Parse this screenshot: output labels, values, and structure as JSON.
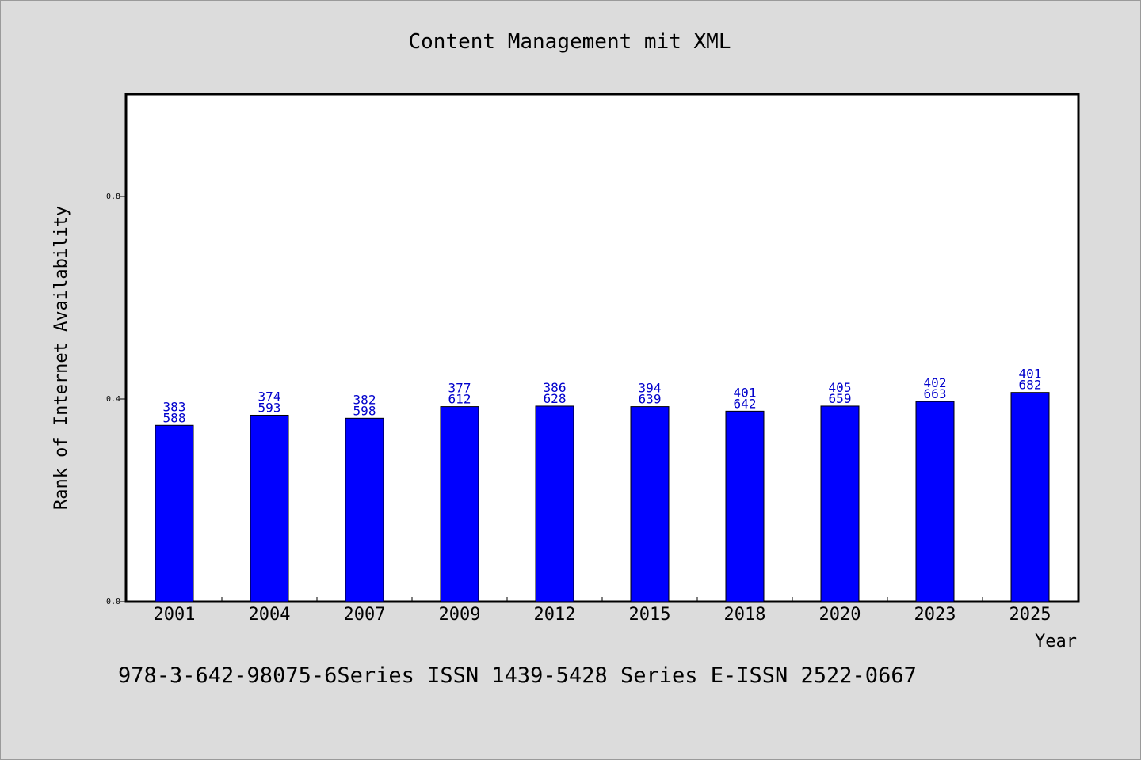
{
  "chart_data": {
    "type": "bar",
    "title": "Content Management mit XML",
    "xlabel": "Year",
    "ylabel": "Rank of Internet Availability",
    "categories": [
      "2001",
      "2004",
      "2007",
      "2009",
      "2012",
      "2015",
      "2018",
      "2020",
      "2023",
      "2025"
    ],
    "values": [
      0.348,
      0.368,
      0.362,
      0.385,
      0.386,
      0.385,
      0.376,
      0.386,
      0.395,
      0.413
    ],
    "label_top": [
      "383",
      "374",
      "382",
      "377",
      "386",
      "394",
      "401",
      "405",
      "402",
      "401"
    ],
    "label_bottom": [
      "588",
      "593",
      "598",
      "612",
      "628",
      "639",
      "642",
      "659",
      "663",
      "682"
    ],
    "yticks": [
      "0.0",
      "0.4",
      "0.8"
    ],
    "ytick_values": [
      0.0,
      0.4,
      0.8
    ],
    "ylim": [
      0,
      1.0
    ],
    "grid": false,
    "bar_color": "#0000ff",
    "label_color": "#0000cc"
  },
  "footer": {
    "text": "978-3-642-98075-6Series ISSN 1439-5428 Series E-ISSN 2522-0667"
  }
}
